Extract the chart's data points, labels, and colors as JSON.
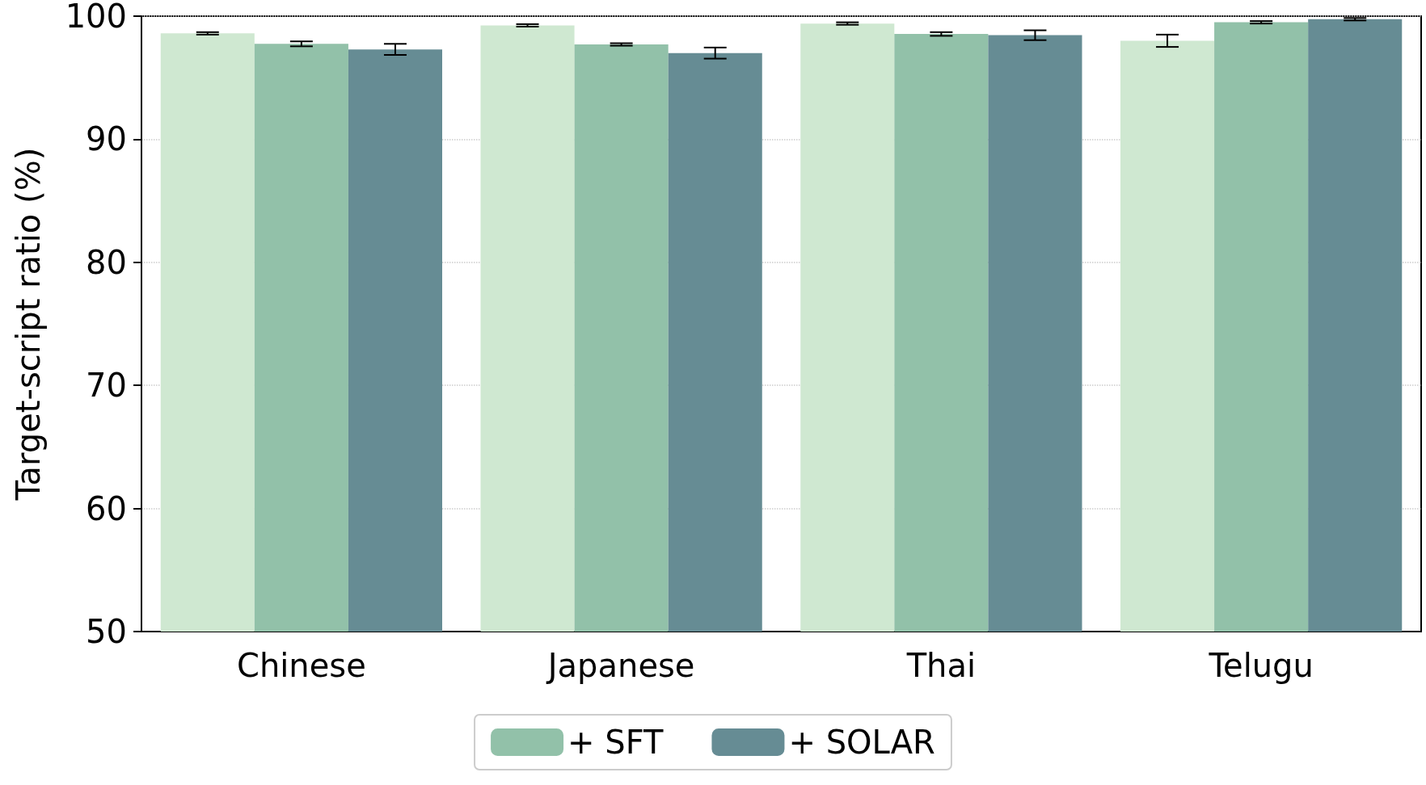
{
  "chart_data": {
    "type": "bar",
    "ylabel": "Target-script ratio (%)",
    "categories": [
      "Chinese",
      "Japanese",
      "Thai",
      "Telugu"
    ],
    "series": [
      {
        "color": "#cfe8d1",
        "values": [
          98.6,
          99.25,
          99.4,
          98.0
        ],
        "errors": [
          0.1,
          0.1,
          0.1,
          0.5
        ]
      },
      {
        "name": "+ SFT",
        "color": "#92c1a9",
        "values": [
          97.75,
          97.7,
          98.55,
          99.5
        ],
        "errors": [
          0.2,
          0.1,
          0.15,
          0.1
        ]
      },
      {
        "name": "+ SOLAR",
        "color": "#668c94",
        "values": [
          97.3,
          97.0,
          98.45,
          99.75
        ],
        "errors": [
          0.45,
          0.45,
          0.4,
          0.1
        ]
      }
    ],
    "ylim": [
      50,
      100
    ],
    "yticks": [
      50,
      60,
      70,
      80,
      90,
      100
    ],
    "grid": "y",
    "legend": "bottom"
  }
}
